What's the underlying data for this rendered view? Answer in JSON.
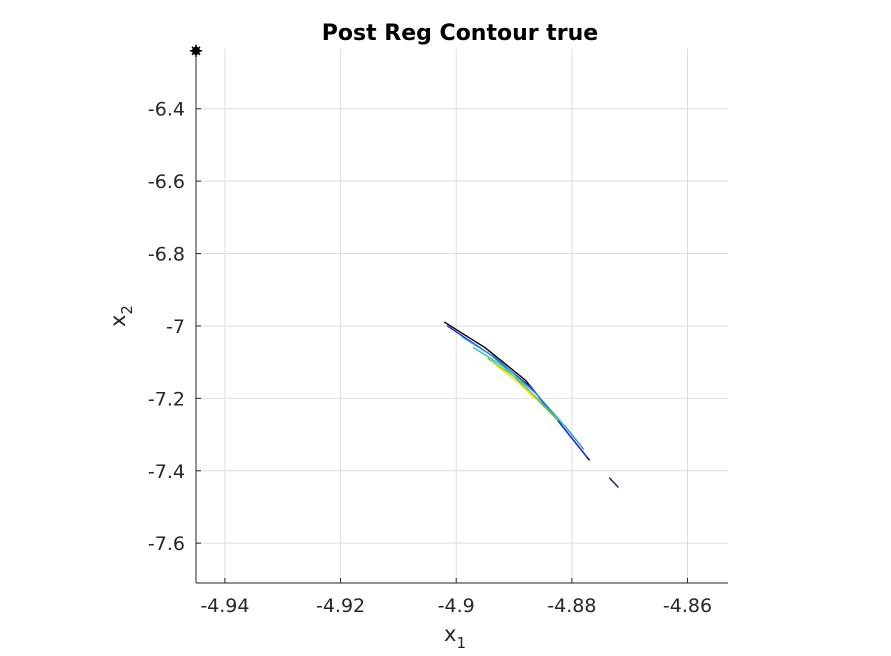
{
  "chart_data": {
    "type": "contour",
    "title": "Post Reg Contour true",
    "xlabel": {
      "base": "x",
      "sub": "1"
    },
    "ylabel": {
      "base": "x",
      "sub": "2"
    },
    "xlim": [
      -4.945,
      -4.853
    ],
    "ylim": [
      -7.71,
      -6.235
    ],
    "xticks": [
      -4.94,
      -4.92,
      -4.9,
      -4.88,
      -4.86
    ],
    "xtick_labels": [
      "-4.94",
      "-4.92",
      "-4.9",
      "-4.88",
      "-4.86"
    ],
    "yticks": [
      -6.4,
      -6.6,
      -6.8,
      -7.0,
      -7.2,
      -7.4,
      -7.6
    ],
    "ytick_labels": [
      "-6.4",
      "-6.6",
      "-6.8",
      "-7",
      "-7.2",
      "-7.4",
      "-7.6"
    ],
    "grid": true,
    "marker": {
      "x": -4.945,
      "y": -6.24,
      "color": "#000000"
    },
    "contour_lines": [
      {
        "color": "#000000",
        "points": [
          [
            -4.902,
            -6.99
          ],
          [
            -4.895,
            -7.06
          ],
          [
            -4.888,
            -7.15
          ],
          [
            -4.882,
            -7.27
          ],
          [
            -4.877,
            -7.37
          ]
        ]
      },
      {
        "color": "#1f2bd6",
        "points": [
          [
            -4.9015,
            -7.0
          ],
          [
            -4.894,
            -7.08
          ],
          [
            -4.887,
            -7.17
          ],
          [
            -4.881,
            -7.29
          ],
          [
            -4.8775,
            -7.36
          ]
        ]
      },
      {
        "color": "#2a8fd8",
        "points": [
          [
            -4.899,
            -7.03
          ],
          [
            -4.893,
            -7.09
          ],
          [
            -4.886,
            -7.19
          ],
          [
            -4.8805,
            -7.29
          ],
          [
            -4.878,
            -7.34
          ]
        ]
      },
      {
        "color": "#27c0b0",
        "points": [
          [
            -4.897,
            -7.06
          ],
          [
            -4.892,
            -7.11
          ],
          [
            -4.886,
            -7.2
          ],
          [
            -4.881,
            -7.28
          ]
        ]
      },
      {
        "color": "#86c93a",
        "points": [
          [
            -4.8945,
            -7.09
          ],
          [
            -4.889,
            -7.15
          ],
          [
            -4.885,
            -7.22
          ],
          [
            -4.8825,
            -7.26
          ]
        ]
      },
      {
        "color": "#f0e020",
        "points": [
          [
            -4.893,
            -7.11
          ],
          [
            -4.889,
            -7.16
          ],
          [
            -4.8865,
            -7.2
          ]
        ]
      },
      {
        "color": "#1a1a7a",
        "points": [
          [
            -4.8735,
            -7.42
          ],
          [
            -4.872,
            -7.445
          ]
        ]
      }
    ]
  }
}
